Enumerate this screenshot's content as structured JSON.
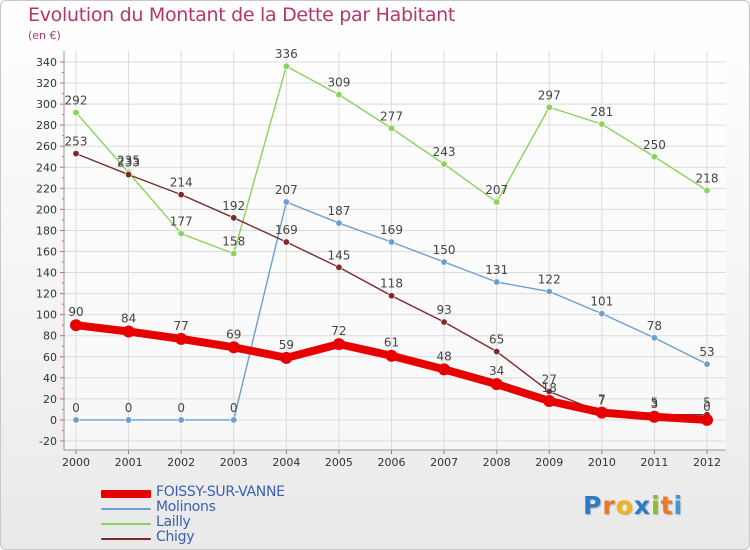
{
  "title": "Evolution du Montant de la Dette par Habitant",
  "unit": "(en €)",
  "logo": {
    "letters": [
      "P",
      "r",
      "o",
      "x",
      "i",
      "t",
      "i"
    ],
    "colors": [
      "#2a7cc7",
      "#e9782a",
      "#f3b417",
      "#2a7cc7",
      "#8cbb2a",
      "#e9782a",
      "#3c9bd6"
    ]
  },
  "chart_data": {
    "type": "line",
    "x": [
      "2000",
      "2001",
      "2002",
      "2003",
      "2004",
      "2005",
      "2006",
      "2007",
      "2008",
      "2009",
      "2010",
      "2011",
      "2012"
    ],
    "ylim": [
      -20,
      340
    ],
    "yticks": [
      -20,
      0,
      20,
      40,
      60,
      80,
      100,
      120,
      140,
      160,
      180,
      200,
      220,
      240,
      260,
      280,
      300,
      320,
      340
    ],
    "grid": true,
    "legend_position": "bottom-left",
    "series": [
      {
        "name": "FOISSY-SUR-VANNE",
        "color": "#e60000",
        "values": [
          90,
          84,
          77,
          69,
          59,
          72,
          61,
          48,
          34,
          18,
          7,
          3,
          0
        ]
      },
      {
        "name": "Molinons",
        "color": "#6c9fd1",
        "values": [
          0,
          0,
          0,
          0,
          207,
          187,
          169,
          150,
          131,
          122,
          101,
          78,
          53
        ]
      },
      {
        "name": "Lailly",
        "color": "#8ad35a",
        "values": [
          292,
          235,
          177,
          158,
          336,
          309,
          277,
          243,
          207,
          297,
          281,
          250,
          218
        ]
      },
      {
        "name": "Chigy",
        "color": "#7a2a2a",
        "values": [
          253,
          233,
          214,
          192,
          169,
          145,
          118,
          93,
          65,
          27,
          7,
          5,
          5
        ]
      }
    ]
  }
}
